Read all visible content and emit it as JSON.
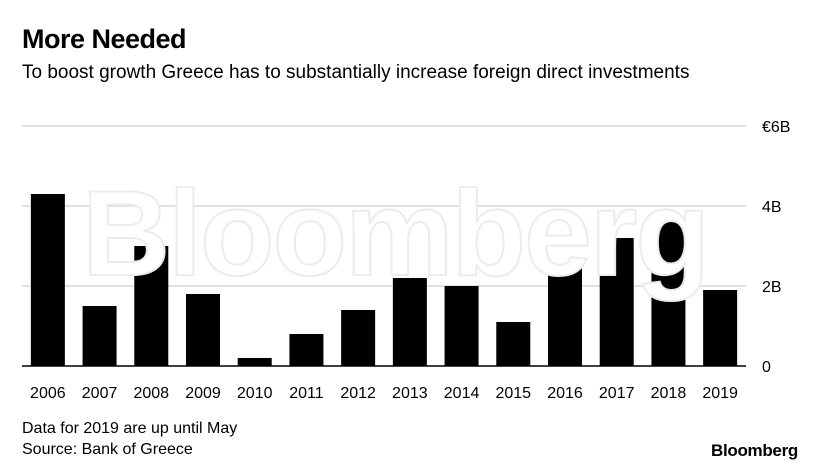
{
  "header": {
    "title": "More Needed",
    "subtitle": "To boost growth Greece has to substantially increase foreign direct investments"
  },
  "footer": {
    "note": "Data for 2019 are up until May",
    "source": "Source: Bank of Greece",
    "brand": "Bloomberg"
  },
  "watermark": "Bloomberg",
  "chart_data": {
    "type": "bar",
    "title": "More Needed",
    "subtitle": "To boost growth Greece has to substantially increase foreign direct investments",
    "xlabel": "",
    "ylabel": "",
    "ylim": [
      0,
      6
    ],
    "y_ticks": [
      0,
      2,
      4,
      6
    ],
    "y_tick_labels": [
      "0",
      "2B",
      "4B",
      "€6B"
    ],
    "grid": true,
    "categories": [
      "2006",
      "2007",
      "2008",
      "2009",
      "2010",
      "2011",
      "2012",
      "2013",
      "2014",
      "2015",
      "2016",
      "2017",
      "2018",
      "2019"
    ],
    "values": [
      4.3,
      1.5,
      3.0,
      1.8,
      0.2,
      0.8,
      1.4,
      2.2,
      2.0,
      1.1,
      2.5,
      3.2,
      3.6,
      1.9
    ],
    "bar_color": "#000000",
    "grid_color": "#d9d9d9"
  }
}
